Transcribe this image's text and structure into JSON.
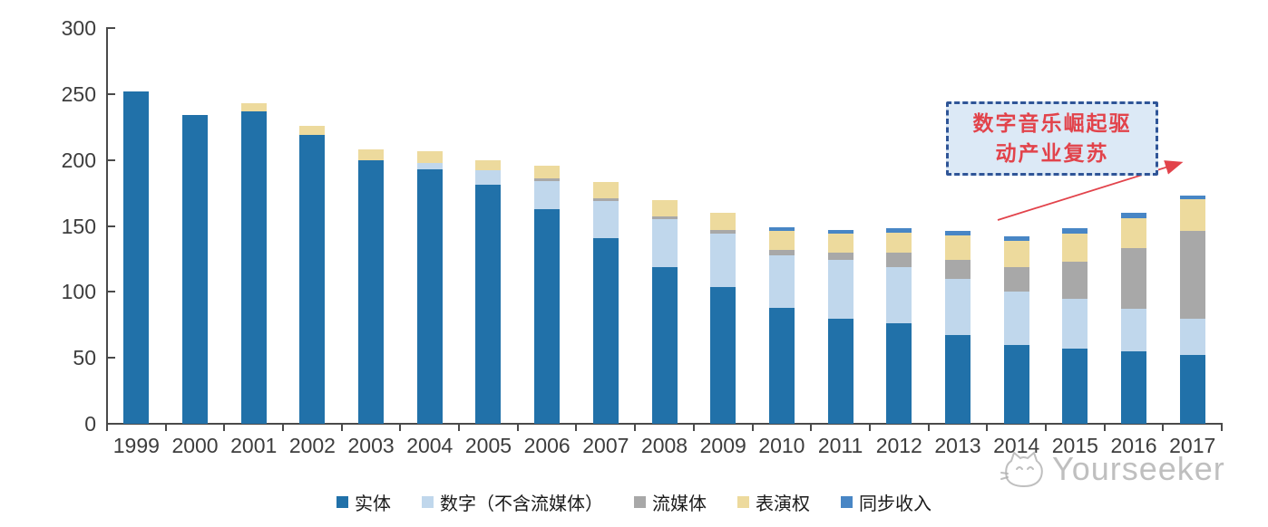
{
  "chart_data": {
    "type": "bar",
    "stacked": true,
    "title": "",
    "xlabel": "",
    "ylabel": "",
    "ylim": [
      0,
      300
    ],
    "yticks": [
      0,
      50,
      100,
      150,
      200,
      250,
      300
    ],
    "grid": false,
    "legend_position": "bottom",
    "categories": [
      "1999",
      "2000",
      "2001",
      "2002",
      "2003",
      "2004",
      "2005",
      "2006",
      "2007",
      "2008",
      "2009",
      "2010",
      "2011",
      "2012",
      "2013",
      "2014",
      "2015",
      "2016",
      "2017"
    ],
    "series": [
      {
        "name": "实体",
        "color": "#2171A9",
        "values": [
          252,
          234,
          237,
          219,
          200,
          193,
          181,
          163,
          141,
          119,
          104,
          88,
          80,
          76,
          67,
          60,
          57,
          55,
          52
        ]
      },
      {
        "name": "数字（不含流媒体）",
        "color": "#C0D7EC",
        "values": [
          0,
          0,
          0,
          0,
          0,
          5,
          11,
          21,
          28,
          36,
          40,
          40,
          44,
          43,
          43,
          40,
          38,
          32,
          28
        ]
      },
      {
        "name": "流媒体",
        "color": "#A8A8A8",
        "values": [
          0,
          0,
          0,
          0,
          0,
          0,
          0,
          2,
          2,
          2,
          3,
          4,
          6,
          11,
          14,
          19,
          28,
          46,
          66
        ]
      },
      {
        "name": "表演权",
        "color": "#EDDA9D",
        "values": [
          0,
          0,
          6,
          7,
          8,
          9,
          8,
          10,
          12,
          13,
          13,
          14,
          14,
          15,
          19,
          20,
          21,
          23,
          24
        ]
      },
      {
        "name": "同步收入",
        "color": "#4886C5",
        "values": [
          0,
          0,
          0,
          0,
          0,
          0,
          0,
          0,
          0,
          0,
          0,
          3,
          3,
          3,
          3,
          3,
          4,
          4,
          3
        ]
      }
    ]
  },
  "annotation": {
    "line1": "数字音乐崛起驱",
    "line2": "动产业复苏",
    "text_color": "#e2434b",
    "border_color": "#2f5597",
    "fill_color": "#dce9f6",
    "arrow_color": "#e2434b"
  },
  "watermark": {
    "text": "Yourseeker",
    "logo": "cat-icon",
    "color": "#aaaaaa"
  },
  "axis_colors": {
    "line": "#4a4a4a",
    "text": "#3d3d3d"
  }
}
